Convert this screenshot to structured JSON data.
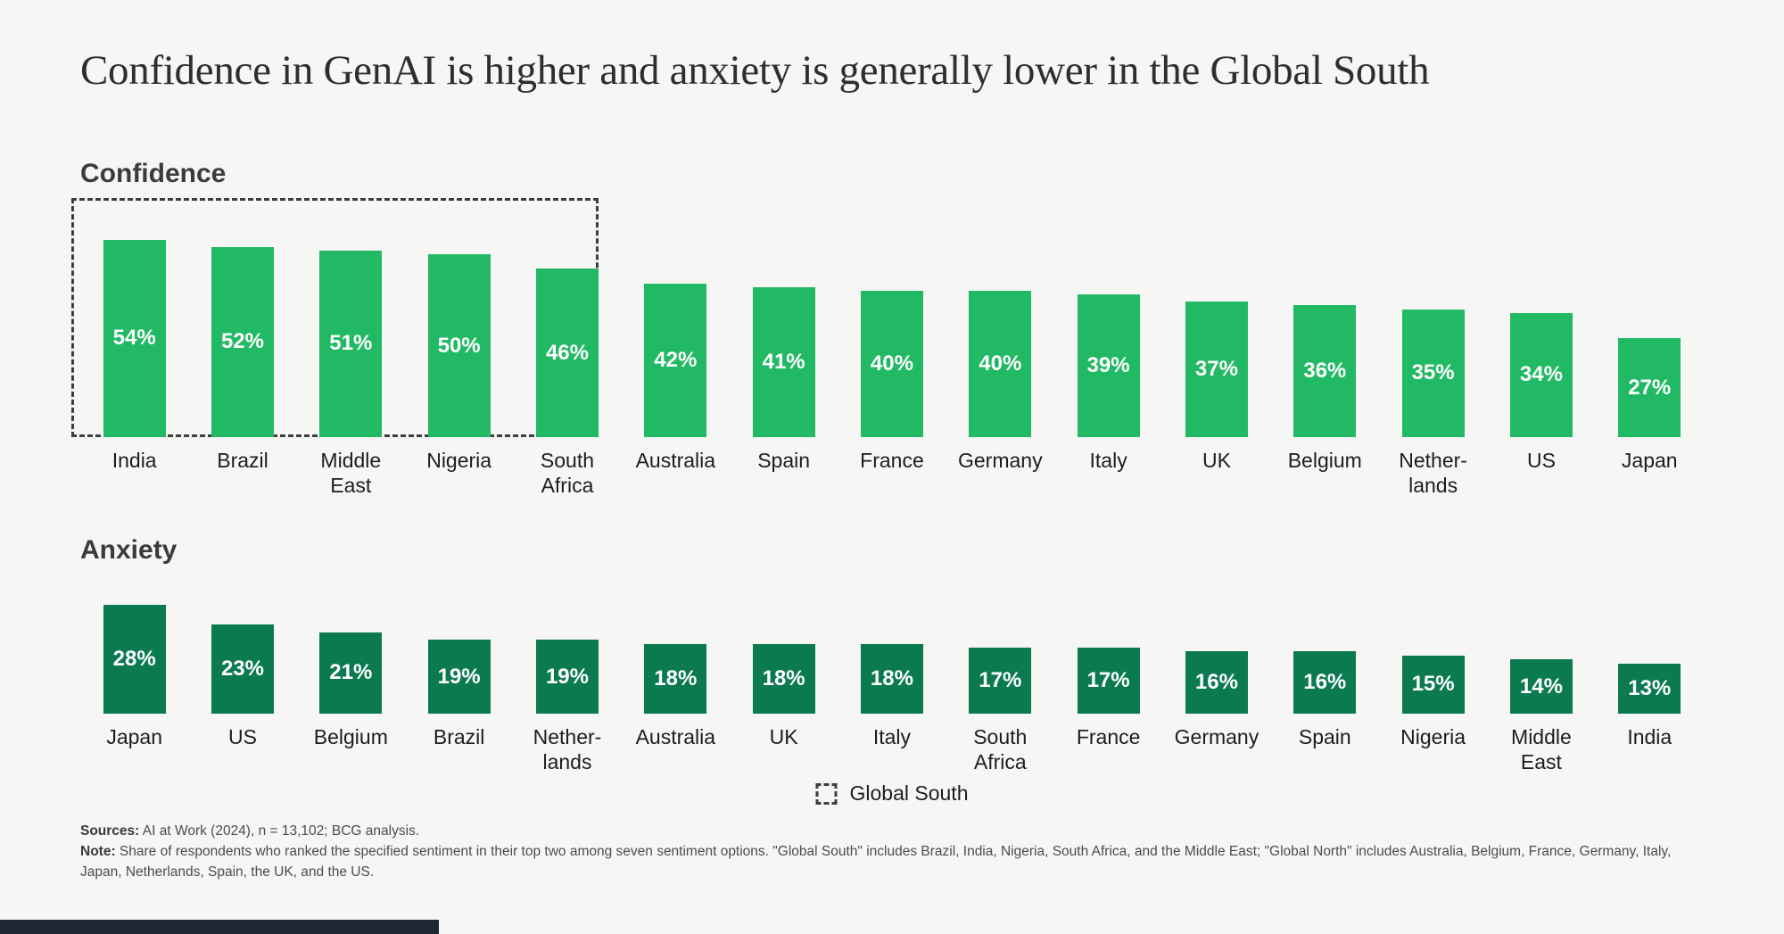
{
  "page": {
    "title": "Confidence in GenAI is higher and anxiety is generally lower in the Global South"
  },
  "legend": {
    "icon": "dashed-box-icon",
    "label": "Global South"
  },
  "footer": {
    "sources_label": "Sources:",
    "sources_text": " AI at Work (2024), n = 13,102; BCG analysis.",
    "note_label": "Note:",
    "note_text": " Share of respondents who ranked the specified sentiment in their top two among seven sentiment options. \"Global South\" includes Brazil, India, Nigeria, South Africa, and the Middle East; \"Global North\" includes Australia, Belgium, France, Germany, Italy, Japan, Netherlands, Spain, the UK, and the US."
  },
  "colors": {
    "background": "#F6F6F5",
    "confidence_bar": "#22B965",
    "anxiety_bar": "#0B7A51",
    "dashed_outline": "#3D3D3D",
    "value_label_text": "#FFFFFF"
  },
  "chart_data": [
    {
      "type": "bar",
      "title": "Confidence",
      "categories": [
        "India",
        "Brazil",
        "Middle East",
        "Nigeria",
        "South Africa",
        "Australia",
        "Spain",
        "France",
        "Germany",
        "Italy",
        "UK",
        "Belgium",
        "Nether-lands",
        "US",
        "Japan"
      ],
      "values": [
        54,
        52,
        51,
        50,
        46,
        42,
        41,
        40,
        40,
        39,
        37,
        36,
        35,
        34,
        27
      ],
      "unit": "%",
      "bar_color": "#22B965",
      "value_labels": "inside-center-white-bold",
      "axes": "none",
      "grid": false,
      "highlight_group": {
        "label": "Global South",
        "from_index": 0,
        "to_index": 4,
        "style": "dashed-outline"
      }
    },
    {
      "type": "bar",
      "title": "Anxiety",
      "categories": [
        "Japan",
        "US",
        "Belgium",
        "Brazil",
        "Nether-lands",
        "Australia",
        "UK",
        "Italy",
        "South Africa",
        "France",
        "Germany",
        "Spain",
        "Nigeria",
        "Middle East",
        "India"
      ],
      "values": [
        28,
        23,
        21,
        19,
        19,
        18,
        18,
        18,
        17,
        17,
        16,
        16,
        15,
        14,
        13
      ],
      "unit": "%",
      "bar_color": "#0B7A51",
      "value_labels": "inside-center-white-bold",
      "axes": "none",
      "grid": false
    }
  ]
}
